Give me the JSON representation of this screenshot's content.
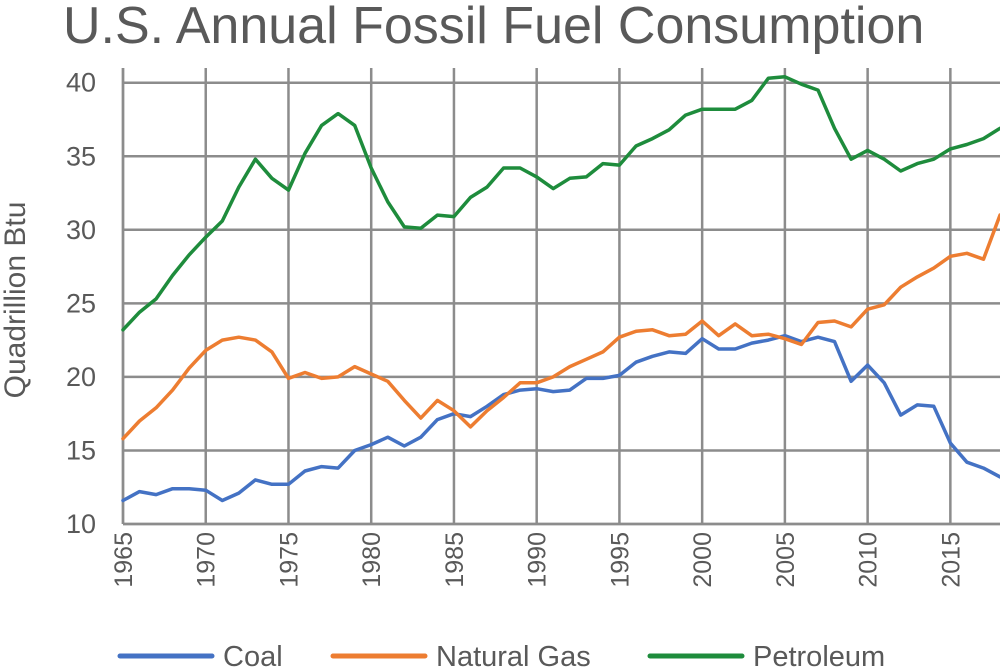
{
  "chart_data": {
    "type": "line",
    "title": "U.S. Annual Fossil Fuel Consumption",
    "xlabel": "",
    "ylabel": "Quadrillion Btu",
    "xlim": [
      1965,
      2018
    ],
    "ylim": [
      10,
      41
    ],
    "y_ticks": [
      10,
      15,
      20,
      25,
      30,
      35,
      40
    ],
    "x_ticks": [
      1965,
      1970,
      1975,
      1980,
      1985,
      1990,
      1995,
      2000,
      2005,
      2010,
      2015
    ],
    "x_minor_step": 5,
    "grid": true,
    "legend_position": "bottom",
    "x": [
      1965,
      1966,
      1967,
      1968,
      1969,
      1970,
      1971,
      1972,
      1973,
      1974,
      1975,
      1976,
      1977,
      1978,
      1979,
      1980,
      1981,
      1982,
      1983,
      1984,
      1985,
      1986,
      1987,
      1988,
      1989,
      1990,
      1991,
      1992,
      1993,
      1994,
      1995,
      1996,
      1997,
      1998,
      1999,
      2000,
      2001,
      2002,
      2003,
      2004,
      2005,
      2006,
      2007,
      2008,
      2009,
      2010,
      2011,
      2012,
      2013,
      2014,
      2015,
      2016,
      2017,
      2018
    ],
    "series": [
      {
        "name": "Coal",
        "color": "#4472C4",
        "values": [
          11.6,
          12.2,
          12.0,
          12.4,
          12.4,
          12.3,
          11.6,
          12.1,
          13.0,
          12.7,
          12.7,
          13.6,
          13.9,
          13.8,
          15.0,
          15.4,
          15.9,
          15.3,
          15.9,
          17.1,
          17.5,
          17.3,
          18.0,
          18.8,
          19.1,
          19.2,
          19.0,
          19.1,
          19.9,
          19.9,
          20.1,
          21.0,
          21.4,
          21.7,
          21.6,
          22.6,
          21.9,
          21.9,
          22.3,
          22.5,
          22.8,
          22.4,
          22.7,
          22.4,
          19.7,
          20.8,
          19.6,
          17.4,
          18.1,
          18.0,
          15.5,
          14.2,
          13.8,
          13.2
        ]
      },
      {
        "name": "Natural Gas",
        "color": "#ED7D31",
        "values": [
          15.8,
          17.0,
          17.9,
          19.1,
          20.6,
          21.8,
          22.5,
          22.7,
          22.5,
          21.7,
          19.9,
          20.3,
          19.9,
          20.0,
          20.7,
          20.2,
          19.7,
          18.4,
          17.2,
          18.4,
          17.7,
          16.6,
          17.7,
          18.6,
          19.6,
          19.6,
          20.0,
          20.7,
          21.2,
          21.7,
          22.7,
          23.1,
          23.2,
          22.8,
          22.9,
          23.8,
          22.8,
          23.6,
          22.8,
          22.9,
          22.6,
          22.2,
          23.7,
          23.8,
          23.4,
          24.6,
          24.9,
          26.1,
          26.8,
          27.4,
          28.2,
          28.4,
          28.0,
          31.0
        ]
      },
      {
        "name": "Petroleum",
        "color": "#1E8C3C",
        "values": [
          23.2,
          24.4,
          25.3,
          26.9,
          28.3,
          29.5,
          30.6,
          32.9,
          34.8,
          33.5,
          32.7,
          35.2,
          37.1,
          37.9,
          37.1,
          34.2,
          31.9,
          30.2,
          30.1,
          31.0,
          30.9,
          32.2,
          32.9,
          34.2,
          34.2,
          33.6,
          32.8,
          33.5,
          33.6,
          34.5,
          34.4,
          35.7,
          36.2,
          36.8,
          37.8,
          38.2,
          38.2,
          38.2,
          38.8,
          40.3,
          40.4,
          39.9,
          39.5,
          36.9,
          34.8,
          35.4,
          34.8,
          34.0,
          34.5,
          34.8,
          35.5,
          35.8,
          36.2,
          36.9
        ]
      }
    ]
  }
}
